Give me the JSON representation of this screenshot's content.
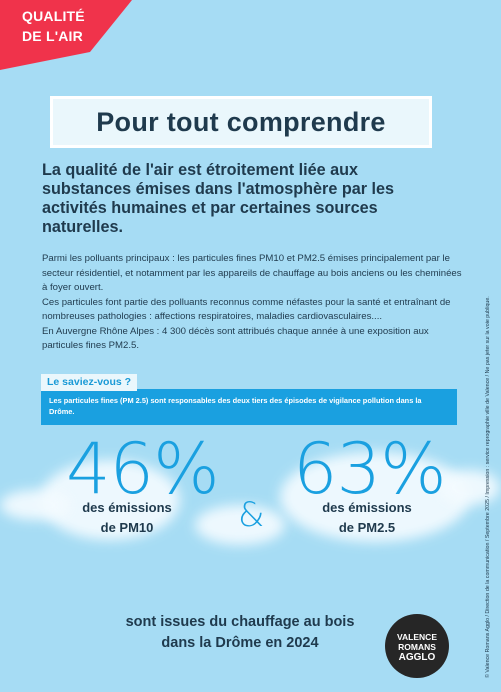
{
  "corner_tag": {
    "line1": "QUALITÉ",
    "line2": "DE L'AIR"
  },
  "title": "Pour tout comprendre",
  "lead": "La qualité de l'air est étroitement liée aux substances émises dans l'atmosphère par les activités humaines et par certaines sources naturelles.",
  "body": {
    "p1": "Parmi les polluants principaux : les particules fines PM10 et PM2.5 émises principalement par le secteur résidentiel, et notamment par les appareils de chauffage au bois anciens ou les cheminées à foyer ouvert.",
    "p2": "Ces particules font partie des polluants reconnus comme néfastes pour la santé et entraînant de nombreuses pathologies : affections respiratoires, maladies cardiovasculaires....",
    "p3": "En Auvergne Rhône Alpes : 4 300 décès sont attribués chaque année à une exposition aux particules fines PM2.5."
  },
  "did_you_know": {
    "tab": "Le saviez-vous ?",
    "text": "Les particules fines (PM 2.5) sont responsables des deux tiers des épisodes de vigilance pollution dans la Drôme."
  },
  "stats": {
    "pm10": {
      "value": "46%",
      "label1": "des émissions",
      "label2": "de PM10"
    },
    "ampersand": "&",
    "pm25": {
      "value": "63%",
      "label1": "des émissions",
      "label2": "de PM2.5"
    }
  },
  "conclusion": {
    "line1": "sont issues du chauffage au bois",
    "line2": "dans la Drôme en 2024"
  },
  "logo": {
    "line1": "VALENCE",
    "line2": "ROMANS",
    "line3": "AGGLO"
  },
  "side_text": "© Valence Romans Agglo / Direction de la communication / Septembre 2025 / Impression : service reprographie ville de Valence / Ne pas jeter sur la voie publique.",
  "colors": {
    "background": "#a6dcf4",
    "accent_red": "#f0334b",
    "accent_blue": "#1aa0e0",
    "text_dark": "#1f3a4d"
  }
}
